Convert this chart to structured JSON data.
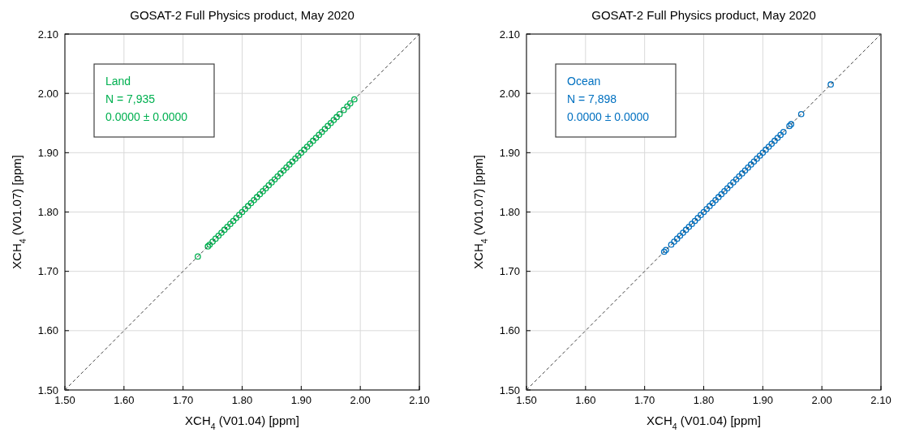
{
  "chart_data": [
    {
      "type": "scatter",
      "title": "GOSAT-2 Full Physics product, May 2020",
      "xlabel": "XCH$_{4}$ (V01.04) [ppm]",
      "ylabel": "XCH$_{4}$ (V01.07) [ppm]",
      "xlim": [
        1.5,
        2.1
      ],
      "ylim": [
        1.5,
        2.1
      ],
      "xticks": [
        {
          "value": 1.5,
          "label": "1.50"
        },
        {
          "value": 1.6,
          "label": "1.60"
        },
        {
          "value": 1.7,
          "label": "1.70"
        },
        {
          "value": 1.8,
          "label": "1.80"
        },
        {
          "value": 1.9,
          "label": "1.90"
        },
        {
          "value": 2.0,
          "label": "2.00"
        },
        {
          "value": 2.1,
          "label": "2.10"
        }
      ],
      "yticks": [
        {
          "value": 1.5,
          "label": "1.50"
        },
        {
          "value": 1.6,
          "label": "1.60"
        },
        {
          "value": 1.7,
          "label": "1.70"
        },
        {
          "value": 1.8,
          "label": "1.80"
        },
        {
          "value": 1.9,
          "label": "1.90"
        },
        {
          "value": 2.0,
          "label": "2.00"
        },
        {
          "value": 2.1,
          "label": "2.10"
        }
      ],
      "grid": true,
      "marker": "circle",
      "annotations": [
        "Land",
        "N = 7,935",
        "0.0000 ± 0.0000"
      ],
      "series": [
        {
          "type": "scatter",
          "color": "#00b050",
          "x": [
            1.725,
            1.742,
            1.745,
            1.75,
            1.755,
            1.76,
            1.765,
            1.77,
            1.775,
            1.78,
            1.785,
            1.79,
            1.795,
            1.8,
            1.805,
            1.81,
            1.815,
            1.82,
            1.825,
            1.83,
            1.835,
            1.84,
            1.845,
            1.85,
            1.855,
            1.86,
            1.865,
            1.87,
            1.875,
            1.88,
            1.885,
            1.89,
            1.895,
            1.9,
            1.905,
            1.91,
            1.915,
            1.92,
            1.925,
            1.93,
            1.935,
            1.94,
            1.945,
            1.95,
            1.955,
            1.96,
            1.965,
            1.972,
            1.978,
            1.983,
            1.99
          ],
          "values": [
            1.725,
            1.742,
            1.745,
            1.75,
            1.755,
            1.76,
            1.765,
            1.77,
            1.775,
            1.78,
            1.785,
            1.79,
            1.795,
            1.8,
            1.805,
            1.81,
            1.815,
            1.82,
            1.825,
            1.83,
            1.835,
            1.84,
            1.845,
            1.85,
            1.855,
            1.86,
            1.865,
            1.87,
            1.875,
            1.88,
            1.885,
            1.89,
            1.895,
            1.9,
            1.905,
            1.91,
            1.915,
            1.92,
            1.925,
            1.93,
            1.935,
            1.94,
            1.945,
            1.95,
            1.955,
            1.96,
            1.965,
            1.972,
            1.978,
            1.983,
            1.99
          ]
        },
        {
          "type": "line",
          "color": "#404040",
          "line_style": "dashed",
          "marker": "none",
          "x": [
            1.5,
            2.1
          ],
          "values": [
            1.5,
            2.1
          ]
        }
      ]
    },
    {
      "type": "scatter",
      "title": "GOSAT-2 Full Physics product, May 2020",
      "xlabel": "XCH$_{4}$ (V01.04) [ppm]",
      "ylabel": "XCH$_{4}$ (V01.07) [ppm]",
      "xlim": [
        1.5,
        2.1
      ],
      "ylim": [
        1.5,
        2.1
      ],
      "xticks": [
        {
          "value": 1.5,
          "label": "1.50"
        },
        {
          "value": 1.6,
          "label": "1.60"
        },
        {
          "value": 1.7,
          "label": "1.70"
        },
        {
          "value": 1.8,
          "label": "1.80"
        },
        {
          "value": 1.9,
          "label": "1.90"
        },
        {
          "value": 2.0,
          "label": "2.00"
        },
        {
          "value": 2.1,
          "label": "2.10"
        }
      ],
      "yticks": [
        {
          "value": 1.5,
          "label": "1.50"
        },
        {
          "value": 1.6,
          "label": "1.60"
        },
        {
          "value": 1.7,
          "label": "1.70"
        },
        {
          "value": 1.8,
          "label": "1.80"
        },
        {
          "value": 1.9,
          "label": "1.90"
        },
        {
          "value": 2.0,
          "label": "2.00"
        },
        {
          "value": 2.1,
          "label": "2.10"
        }
      ],
      "grid": true,
      "marker": "circle",
      "annotations": [
        "Ocean",
        "N = 7,898",
        "0.0000 ± 0.0000"
      ],
      "series": [
        {
          "type": "scatter",
          "color": "#0070c0",
          "x": [
            1.733,
            1.736,
            1.745,
            1.75,
            1.755,
            1.76,
            1.765,
            1.77,
            1.775,
            1.78,
            1.785,
            1.79,
            1.795,
            1.8,
            1.805,
            1.81,
            1.815,
            1.82,
            1.825,
            1.83,
            1.835,
            1.84,
            1.845,
            1.85,
            1.855,
            1.86,
            1.865,
            1.87,
            1.875,
            1.88,
            1.885,
            1.89,
            1.895,
            1.9,
            1.905,
            1.91,
            1.915,
            1.92,
            1.925,
            1.93,
            1.935,
            1.945,
            1.948,
            1.965,
            2.015
          ],
          "values": [
            1.733,
            1.736,
            1.745,
            1.75,
            1.755,
            1.76,
            1.765,
            1.77,
            1.775,
            1.78,
            1.785,
            1.79,
            1.795,
            1.8,
            1.805,
            1.81,
            1.815,
            1.82,
            1.825,
            1.83,
            1.835,
            1.84,
            1.845,
            1.85,
            1.855,
            1.86,
            1.865,
            1.87,
            1.875,
            1.88,
            1.885,
            1.89,
            1.895,
            1.9,
            1.905,
            1.91,
            1.915,
            1.92,
            1.925,
            1.93,
            1.935,
            1.945,
            1.948,
            1.965,
            2.015
          ]
        },
        {
          "type": "line",
          "color": "#404040",
          "line_style": "dashed",
          "marker": "none",
          "x": [
            1.5,
            2.1
          ],
          "values": [
            1.5,
            2.1
          ]
        }
      ]
    }
  ]
}
